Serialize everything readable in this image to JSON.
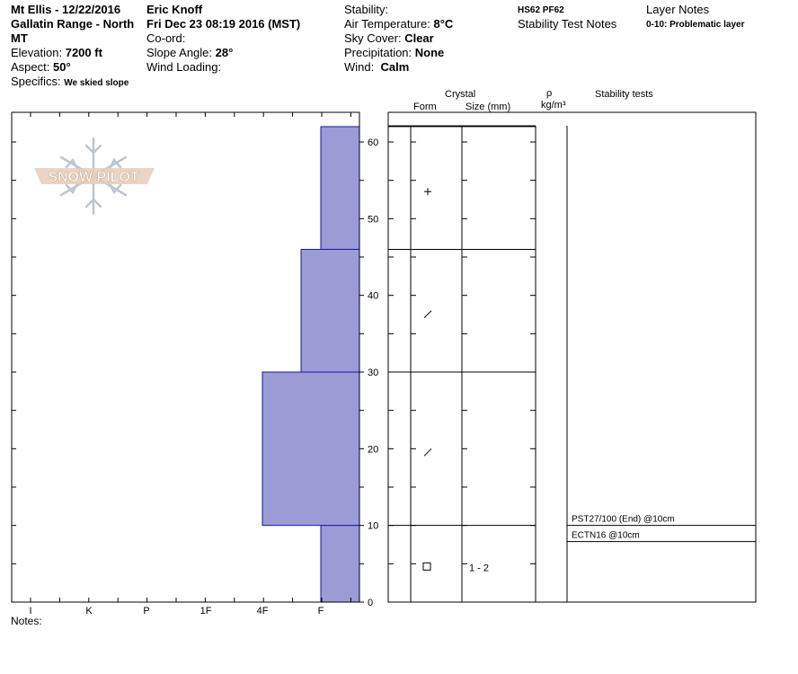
{
  "header": {
    "location_line1": "Mt Ellis - 12/22/2016",
    "location_line2": "Gallatin Range - North",
    "location_line3": "MT",
    "elevation_label": "Elevation:",
    "elevation_value": "7200 ft",
    "aspect_label": "Aspect:",
    "aspect_value": "50°",
    "specifics_label": "Specifics:",
    "specifics_value": "We skied slope",
    "observer": "Eric Knoff",
    "datetime": "Fri Dec 23 08:19 2016 (MST)",
    "coord_label": "Co-ord:",
    "slope_label": "Slope Angle:",
    "slope_value": "28°",
    "wind_loading_label": "Wind Loading:",
    "stability_label": "Stability:",
    "air_temp_label": "Air Temperature:",
    "air_temp_value": "8°C",
    "sky_label": "Sky Cover:",
    "sky_value": "Clear",
    "precip_label": "Precipitation:",
    "precip_value": "None",
    "wind_label": "Wind:",
    "wind_value": "Calm",
    "hs_pf": "HS62  PF62",
    "stability_test_notes": "Stability Test Notes",
    "layer_notes_label": "Layer Notes",
    "layer_notes_value": "0-10: Problematic layer"
  },
  "logo_text": "SNOW PILOT",
  "table_headers": {
    "crystal": "Crystal",
    "form": "Form",
    "size": "Size (mm)",
    "rho": "ρ",
    "density_unit": "kg/m³",
    "stability_tests": "Stability tests"
  },
  "notes_label": "Notes:",
  "colors": {
    "hardness_fill": "#9b9bd6",
    "hardness_stroke": "#1a1aa0",
    "grid": "#000000"
  },
  "chart_data": {
    "type": "bar",
    "orientation": "horizontal-step",
    "x_categories": [
      "I",
      "K",
      "P",
      "1F",
      "4F",
      "F"
    ],
    "ylabel": "",
    "ylim": [
      0,
      63
    ],
    "y_ticks": [
      0,
      10,
      20,
      30,
      40,
      50,
      60
    ],
    "layers": [
      {
        "from": 46,
        "to": 62,
        "hardness": "F",
        "form_icon": "plus",
        "size": ""
      },
      {
        "from": 30,
        "to": 46,
        "hardness": "F+",
        "form_icon": "slash",
        "size": ""
      },
      {
        "from": 10,
        "to": 30,
        "hardness": "4F",
        "form_icon": "slash",
        "size": ""
      },
      {
        "from": 0,
        "to": 10,
        "hardness": "F",
        "form_icon": "square",
        "size": "1 - 2"
      }
    ],
    "stability_tests": [
      {
        "text": "PST27/100 (End) @10cm",
        "depth": 10
      },
      {
        "text": "ECTN16 @10cm",
        "depth": 10
      }
    ]
  }
}
